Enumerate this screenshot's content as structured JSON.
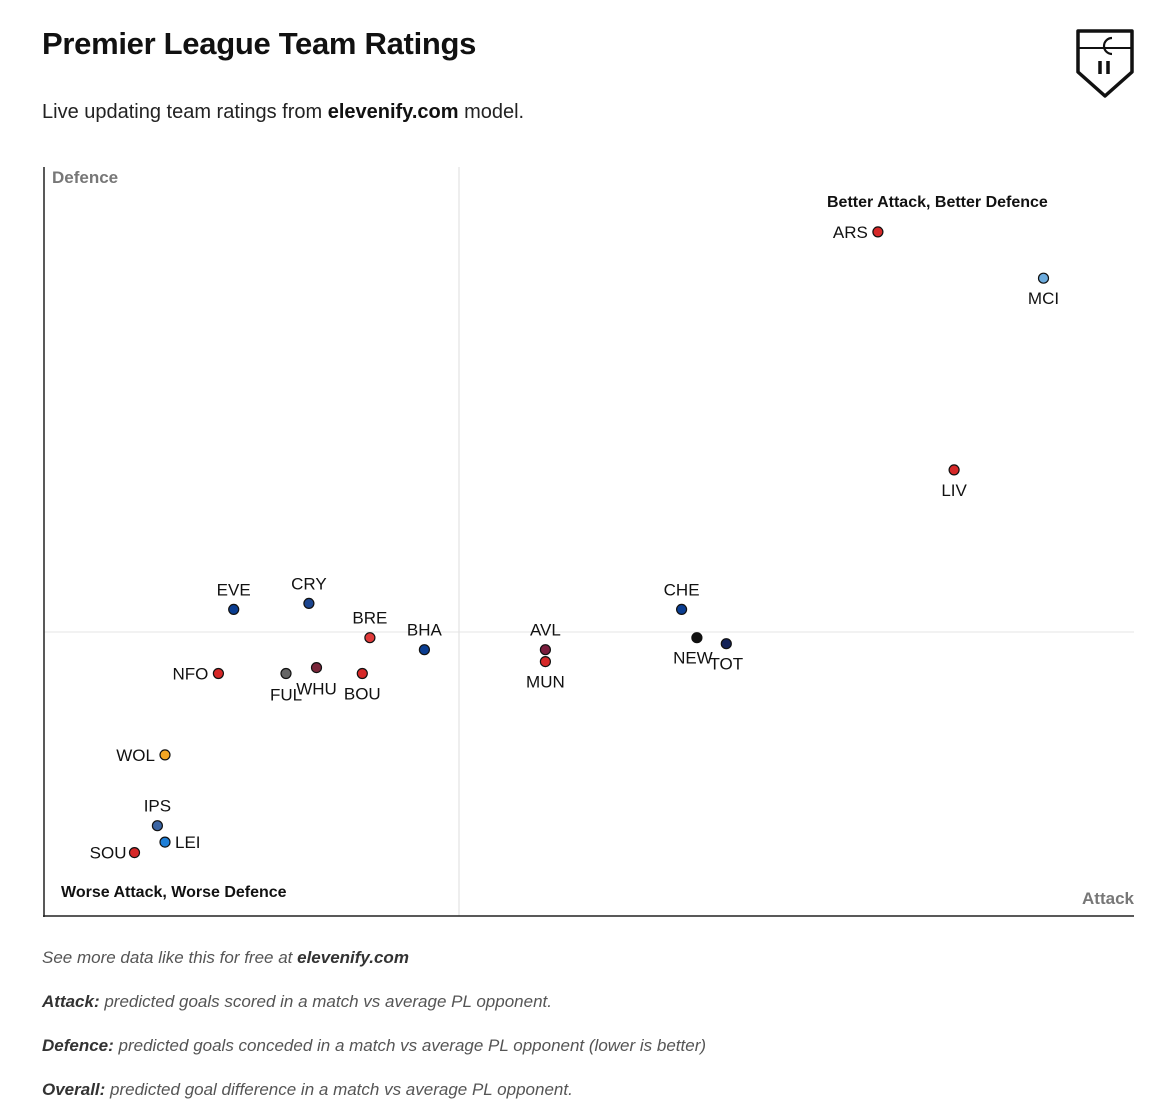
{
  "header": {
    "title": "Premier League Team Ratings",
    "subtitle_pre": "Live updating team ratings from ",
    "subtitle_site": "elevenify.com",
    "subtitle_post": " model.",
    "logo_icon": "elevenify-shield-icon"
  },
  "chart_data": {
    "type": "scatter",
    "xlabel": "Attack",
    "ylabel": "Defence",
    "quadrant_labels": {
      "top_right": "Better Attack, Better Defence",
      "bottom_left": "Worse Attack, Worse Defence"
    },
    "points": [
      {
        "label": "ARS",
        "x": 0.765,
        "y": 0.917,
        "color": "#d62828"
      },
      {
        "label": "MCI",
        "x": 0.917,
        "y": 0.855,
        "color": "#6cabdd"
      },
      {
        "label": "LIV",
        "x": 0.835,
        "y": 0.598,
        "color": "#d62828"
      },
      {
        "label": "CHE",
        "x": 0.585,
        "y": 0.411,
        "color": "#0a3d91"
      },
      {
        "label": "NEW",
        "x": 0.599,
        "y": 0.373,
        "color": "#111111"
      },
      {
        "label": "TOT",
        "x": 0.626,
        "y": 0.365,
        "color": "#132257"
      },
      {
        "label": "AVL",
        "x": 0.46,
        "y": 0.357,
        "color": "#7a1c3c"
      },
      {
        "label": "MUN",
        "x": 0.46,
        "y": 0.341,
        "color": "#d62828"
      },
      {
        "label": "BHA",
        "x": 0.349,
        "y": 0.357,
        "color": "#0a3d91"
      },
      {
        "label": "BRE",
        "x": 0.299,
        "y": 0.373,
        "color": "#e03a3a"
      },
      {
        "label": "CRY",
        "x": 0.243,
        "y": 0.419,
        "color": "#1b458f"
      },
      {
        "label": "EVE",
        "x": 0.174,
        "y": 0.411,
        "color": "#0a3d91"
      },
      {
        "label": "BOU",
        "x": 0.292,
        "y": 0.325,
        "color": "#d62828"
      },
      {
        "label": "WHU",
        "x": 0.25,
        "y": 0.333,
        "color": "#7a263a"
      },
      {
        "label": "FUL",
        "x": 0.222,
        "y": 0.325,
        "color": "#666666"
      },
      {
        "label": "NFO",
        "x": 0.16,
        "y": 0.325,
        "color": "#d62828"
      },
      {
        "label": "WOL",
        "x": 0.111,
        "y": 0.216,
        "color": "#f5a623"
      },
      {
        "label": "IPS",
        "x": 0.104,
        "y": 0.121,
        "color": "#3a64a3"
      },
      {
        "label": "LEI",
        "x": 0.111,
        "y": 0.099,
        "color": "#1e7fd8"
      },
      {
        "label": "SOU",
        "x": 0.083,
        "y": 0.085,
        "color": "#d62828"
      }
    ]
  },
  "notes": {
    "source_pre": "See more data like this for free at ",
    "source_site": "elevenify.com",
    "attack_term": "Attack:",
    "attack_text": " predicted goals scored in a match vs average PL opponent.",
    "defence_term": "Defence:",
    "defence_text": " predicted goals conceded in a match vs average PL opponent (lower is better)",
    "overall_term": "Overall:",
    "overall_text": " predicted goal difference in a match vs average PL opponent."
  }
}
